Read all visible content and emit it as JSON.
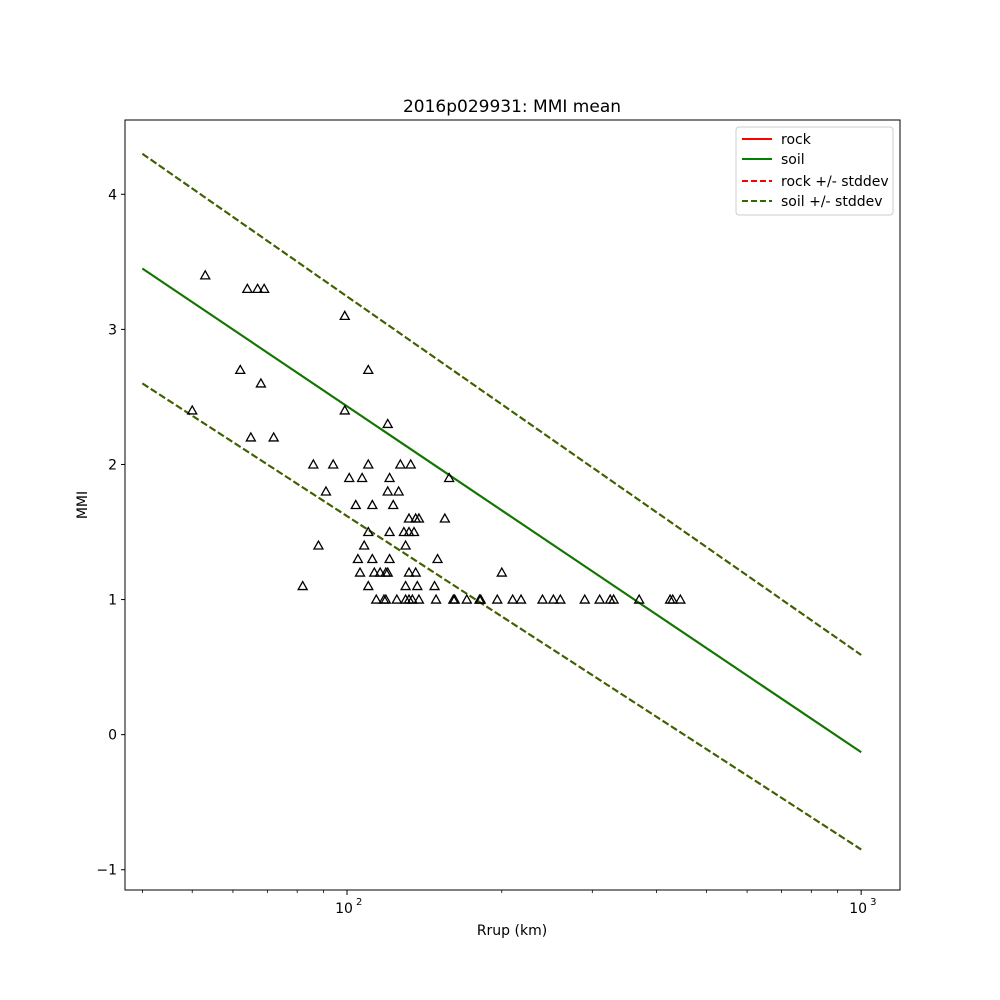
{
  "chart_data": {
    "type": "line",
    "title": "2016p029931: MMI mean",
    "xlabel": "Rrup (km)",
    "ylabel": "MMI",
    "xscale": "log",
    "xlim": [
      37,
      1190
    ],
    "ylim": [
      -1.15,
      4.55
    ],
    "x_ticks": [
      {
        "value": 100,
        "base": "10",
        "exp": "2"
      },
      {
        "value": 1000,
        "base": "10",
        "exp": "3"
      }
    ],
    "y_ticks": [
      -1,
      0,
      1,
      2,
      3,
      4
    ],
    "y_tick_labels": [
      "−1",
      "0",
      "1",
      "2",
      "3",
      "4"
    ],
    "grid": false,
    "legend_position": "top-right",
    "colors": {
      "rock": "#ff0000",
      "soil": "#008000",
      "soil_stddev": "#2f6a00",
      "points": "#000000"
    },
    "series": [
      {
        "name": "rock",
        "style": "solid",
        "color": "#ff0000",
        "x": [
          40,
          1000
        ],
        "y": [
          3.45,
          -0.13
        ]
      },
      {
        "name": "soil",
        "style": "solid",
        "color": "#008000",
        "x": [
          40,
          1000
        ],
        "y": [
          3.45,
          -0.13
        ]
      },
      {
        "name": "rock +/- stddev",
        "style": "dashed",
        "color": "#ff0000",
        "x": [
          40,
          1000
        ],
        "y_upper": [
          4.3,
          0.59
        ],
        "y_lower": [
          2.6,
          -0.85
        ]
      },
      {
        "name": "soil +/- stddev",
        "style": "dashed",
        "color": "#2f6a00",
        "x": [
          40,
          1000
        ],
        "y_upper": [
          4.3,
          0.59
        ],
        "y_lower": [
          2.6,
          -0.85
        ]
      }
    ],
    "observations": {
      "marker": "triangle",
      "points": [
        [
          50,
          2.4
        ],
        [
          53,
          3.4
        ],
        [
          62,
          2.7
        ],
        [
          64,
          3.3
        ],
        [
          65,
          2.2
        ],
        [
          67,
          3.3
        ],
        [
          68,
          2.6
        ],
        [
          69,
          3.3
        ],
        [
          72,
          2.2
        ],
        [
          82,
          1.1
        ],
        [
          86,
          2.0
        ],
        [
          88,
          1.4
        ],
        [
          91,
          1.8
        ],
        [
          94,
          2.0
        ],
        [
          99,
          2.4
        ],
        [
          99,
          3.1
        ],
        [
          101,
          1.9
        ],
        [
          104,
          1.7
        ],
        [
          105,
          1.3
        ],
        [
          106,
          1.2
        ],
        [
          107,
          1.9
        ],
        [
          108,
          1.4
        ],
        [
          110,
          2.7
        ],
        [
          110,
          1.5
        ],
        [
          110,
          2.0
        ],
        [
          110,
          1.1
        ],
        [
          112,
          1.7
        ],
        [
          112,
          1.3
        ],
        [
          113,
          1.2
        ],
        [
          114,
          1.0
        ],
        [
          116,
          1.2
        ],
        [
          118,
          1.0
        ],
        [
          119,
          1.0
        ],
        [
          119,
          1.2
        ],
        [
          120,
          1.2
        ],
        [
          120,
          2.3
        ],
        [
          120,
          1.8
        ],
        [
          121,
          1.5
        ],
        [
          121,
          1.9
        ],
        [
          121,
          1.3
        ],
        [
          123,
          1.7
        ],
        [
          125,
          1.0
        ],
        [
          126,
          1.8
        ],
        [
          127,
          2.0
        ],
        [
          129,
          1.5
        ],
        [
          130,
          1.4
        ],
        [
          130,
          1.1
        ],
        [
          130,
          1.0
        ],
        [
          132,
          1.5
        ],
        [
          132,
          1.2
        ],
        [
          132,
          1.6
        ],
        [
          132,
          1.0
        ],
        [
          133,
          2.0
        ],
        [
          134,
          1.0
        ],
        [
          135,
          1.5
        ],
        [
          136,
          1.6
        ],
        [
          136,
          1.2
        ],
        [
          137,
          1.1
        ],
        [
          138,
          1.0
        ],
        [
          138,
          1.6
        ],
        [
          148,
          1.1
        ],
        [
          149,
          1.0
        ],
        [
          150,
          1.3
        ],
        [
          155,
          1.6
        ],
        [
          158,
          1.9
        ],
        [
          161,
          1.0
        ],
        [
          162,
          1.0
        ],
        [
          171,
          1.0
        ],
        [
          181,
          1.0
        ],
        [
          182,
          1.0
        ],
        [
          196,
          1.0
        ],
        [
          200,
          1.2
        ],
        [
          210,
          1.0
        ],
        [
          218,
          1.0
        ],
        [
          240,
          1.0
        ],
        [
          252,
          1.0
        ],
        [
          260,
          1.0
        ],
        [
          290,
          1.0
        ],
        [
          310,
          1.0
        ],
        [
          325,
          1.0
        ],
        [
          330,
          1.0
        ],
        [
          370,
          1.0
        ],
        [
          425,
          1.0
        ],
        [
          430,
          1.0
        ],
        [
          445,
          1.0
        ]
      ]
    }
  }
}
